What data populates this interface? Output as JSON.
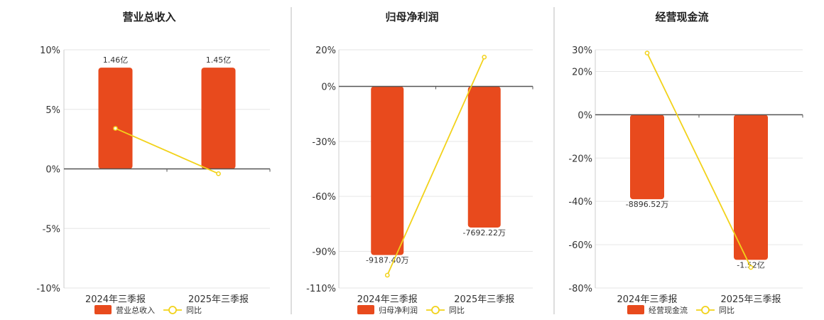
{
  "colors": {
    "bar": "#e84a1d",
    "line": "#f2d21a",
    "grid": "#e6e6e6",
    "axis": "#555555",
    "divider": "#bbbbbb"
  },
  "legend": {
    "series_name": "同比"
  },
  "chart_data": [
    {
      "type": "bar",
      "title": "营业总收入",
      "categories": [
        "2024年三季报",
        "2025年三季报"
      ],
      "ylim": [
        -10,
        10
      ],
      "yticks": [
        10,
        5,
        0,
        -5,
        -10
      ],
      "ytick_labels": [
        "10%",
        "5%",
        "0%",
        "-5%",
        "-10%"
      ],
      "bar_pct": [
        8.5,
        8.5
      ],
      "bar_labels": [
        "1.46亿",
        "1.45亿"
      ],
      "yoy_pct": [
        3.4,
        -0.4
      ],
      "bar_series_name": "营业总收入",
      "line_series_name": "同比",
      "grid": true,
      "legend_position": "bottom"
    },
    {
      "type": "bar",
      "title": "归母净利润",
      "categories": [
        "2024年三季报",
        "2025年三季报"
      ],
      "ylim": [
        -110,
        20
      ],
      "yticks": [
        20,
        0,
        -30,
        -60,
        -90,
        -110
      ],
      "ytick_labels": [
        "20%",
        "0%",
        "-30%",
        "-60%",
        "-90%",
        "-110%"
      ],
      "bar_pct": [
        -92,
        -77
      ],
      "bar_labels": [
        "-9187.40万",
        "-7692.22万"
      ],
      "yoy_pct": [
        -103,
        16
      ],
      "bar_series_name": "归母净利润",
      "line_series_name": "同比",
      "grid": true,
      "legend_position": "bottom"
    },
    {
      "type": "bar",
      "title": "经营现金流",
      "categories": [
        "2024年三季报",
        "2025年三季报"
      ],
      "ylim": [
        -80,
        30
      ],
      "yticks": [
        30,
        20,
        0,
        -20,
        -40,
        -60,
        -80
      ],
      "ytick_labels": [
        "30%",
        "20%",
        "0%",
        "-20%",
        "-40%",
        "-60%",
        "-80%"
      ],
      "bar_pct": [
        -39,
        -67
      ],
      "bar_labels": [
        "-8896.52万",
        "-1.52亿"
      ],
      "yoy_pct": [
        28.5,
        -70.5
      ],
      "bar_series_name": "经营现金流",
      "line_series_name": "同比",
      "grid": true,
      "legend_position": "bottom"
    }
  ]
}
